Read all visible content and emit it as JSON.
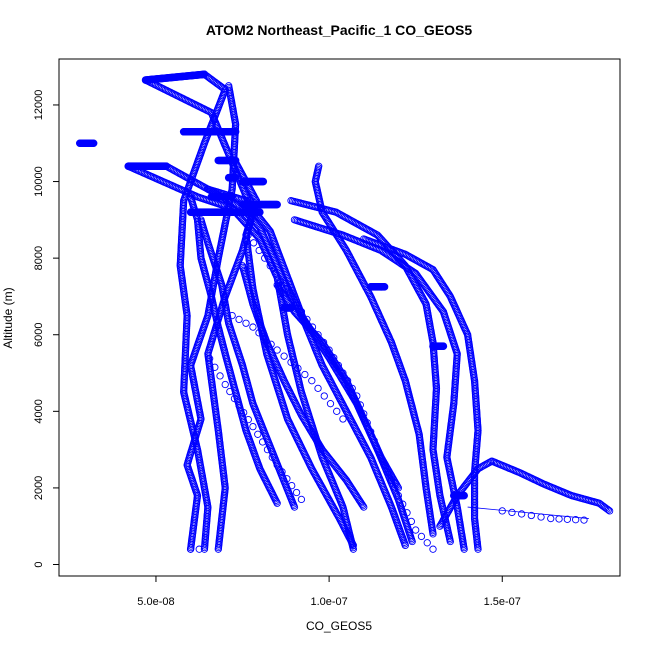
{
  "chart_data": {
    "type": "scatter",
    "title": "ATOM2 Northeast_Pacific_1 CO_GEOS5",
    "xlabel": "CO_GEOS5",
    "ylabel": "Altitude (m)",
    "xlim": [
      2.2e-08,
      1.84e-07
    ],
    "ylim": [
      -300,
      13200
    ],
    "x_ticks": [
      5e-08,
      1e-07,
      1.5e-07
    ],
    "x_tick_labels": [
      "5.0e-08",
      "1.0e-07",
      "1.5e-07"
    ],
    "y_ticks": [
      0,
      2000,
      4000,
      6000,
      8000,
      10000,
      12000
    ],
    "y_tick_labels": [
      "0",
      "2000",
      "4000",
      "6000",
      "8000",
      "10000",
      "12000"
    ],
    "grid": false,
    "marker_color": "#0000ff",
    "marker": "open-circle",
    "series": [
      {
        "values": [
          [
            6e-08,
            400
          ],
          [
            6.2e-08,
            1800
          ],
          [
            5.9e-08,
            2600
          ],
          [
            6.3e-08,
            3800
          ],
          [
            6e-08,
            5200
          ],
          [
            6.5e-08,
            6500
          ],
          [
            6.8e-08,
            8000
          ],
          [
            7.2e-08,
            9800
          ],
          [
            7.3e-08,
            11500
          ],
          [
            7.1e-08,
            12500
          ]
        ]
      },
      {
        "values": [
          [
            6.4e-08,
            400
          ],
          [
            6.5e-08,
            1500
          ],
          [
            6.2e-08,
            3000
          ],
          [
            5.8e-08,
            4500
          ],
          [
            5.9e-08,
            6500
          ],
          [
            5.7e-08,
            7800
          ],
          [
            5.8e-08,
            9500
          ],
          [
            6.4e-08,
            11000
          ],
          [
            7e-08,
            12400
          ],
          [
            6.4e-08,
            12800
          ]
        ]
      },
      {
        "values": [
          [
            6.8e-08,
            400
          ],
          [
            7e-08,
            2000
          ],
          [
            6.8e-08,
            3500
          ],
          [
            6.5e-08,
            5500
          ],
          [
            7e-08,
            7000
          ],
          [
            7.5e-08,
            8200
          ],
          [
            7.8e-08,
            9200
          ],
          [
            7.2e-08,
            10500
          ],
          [
            6.6e-08,
            11800
          ],
          [
            4.7e-08,
            12650
          ]
        ]
      },
      {
        "values": [
          [
            1.07e-07,
            400
          ],
          [
            1.04e-07,
            1500
          ],
          [
            9.8e-08,
            2800
          ],
          [
            9.2e-08,
            4500
          ],
          [
            8.8e-08,
            6000
          ],
          [
            8.5e-08,
            7500
          ],
          [
            8e-08,
            8500
          ],
          [
            7.2e-08,
            9300
          ],
          [
            6.2e-08,
            9600
          ],
          [
            4.2e-08,
            10400
          ]
        ]
      },
      {
        "values": [
          [
            1.07e-07,
            500
          ],
          [
            1.03e-07,
            1200
          ],
          [
            9.5e-08,
            2500
          ],
          [
            8.8e-08,
            3800
          ],
          [
            8.2e-08,
            5500
          ],
          [
            7.8e-08,
            7200
          ],
          [
            7.6e-08,
            8600
          ],
          [
            7.9e-08,
            9500
          ],
          [
            7.6e-08,
            10000
          ],
          [
            7.3e-08,
            10500
          ]
        ]
      },
      {
        "values": [
          [
            1.22e-07,
            500
          ],
          [
            1.18e-07,
            1500
          ],
          [
            1.12e-07,
            2800
          ],
          [
            1.05e-07,
            4000
          ],
          [
            9.8e-08,
            5200
          ],
          [
            9.3e-08,
            6300
          ],
          [
            8.8e-08,
            7500
          ],
          [
            8.3e-08,
            8700
          ],
          [
            7.6e-08,
            9500
          ],
          [
            6.5e-08,
            9800
          ]
        ]
      },
      {
        "values": [
          [
            1.24e-07,
            600
          ],
          [
            1.2e-07,
            1700
          ],
          [
            1.14e-07,
            3000
          ],
          [
            1.08e-07,
            4200
          ],
          [
            1e-07,
            5400
          ],
          [
            9.2e-08,
            6500
          ],
          [
            8.6e-08,
            7600
          ],
          [
            8e-08,
            8800
          ],
          [
            7.5e-08,
            9300
          ],
          [
            5.3e-08,
            10400
          ]
        ]
      },
      {
        "values": [
          [
            1.3e-07,
            800
          ],
          [
            1.28e-07,
            2000
          ],
          [
            1.26e-07,
            3400
          ],
          [
            1.22e-07,
            4800
          ],
          [
            1.18e-07,
            5800
          ],
          [
            1.12e-07,
            7000
          ],
          [
            1.05e-07,
            8200
          ],
          [
            9.8e-08,
            9200
          ],
          [
            9.6e-08,
            10000
          ],
          [
            9.7e-08,
            10400
          ]
        ]
      },
      {
        "values": [
          [
            1.35e-07,
            600
          ],
          [
            1.32e-07,
            1800
          ],
          [
            1.3e-07,
            3000
          ],
          [
            1.31e-07,
            4600
          ],
          [
            1.3e-07,
            5800
          ],
          [
            1.28e-07,
            6800
          ],
          [
            1.22e-07,
            7800
          ],
          [
            1.14e-07,
            8600
          ],
          [
            1.02e-07,
            9200
          ],
          [
            8.9e-08,
            9500
          ]
        ]
      },
      {
        "values": [
          [
            1.39e-07,
            400
          ],
          [
            1.37e-07,
            1500
          ],
          [
            1.34e-07,
            2800
          ],
          [
            1.36e-07,
            4200
          ],
          [
            1.37e-07,
            5500
          ],
          [
            1.33e-07,
            6600
          ],
          [
            1.25e-07,
            7600
          ],
          [
            1.15e-07,
            8200
          ],
          [
            1.04e-07,
            8600
          ],
          [
            9e-08,
            9000
          ]
        ]
      },
      {
        "values": [
          [
            1.43e-07,
            400
          ],
          [
            1.42e-07,
            1200
          ],
          [
            1.42e-07,
            2400
          ],
          [
            1.43e-07,
            3500
          ],
          [
            1.42e-07,
            4800
          ],
          [
            1.4e-07,
            6000
          ],
          [
            1.35e-07,
            7000
          ],
          [
            1.3e-07,
            7700
          ],
          [
            1.22e-07,
            8100
          ],
          [
            1.1e-07,
            8500
          ]
        ]
      },
      {
        "values": [
          [
            1.32e-07,
            1000
          ],
          [
            1.37e-07,
            1800
          ],
          [
            1.43e-07,
            2500
          ],
          [
            1.47e-07,
            2700
          ],
          [
            1.55e-07,
            2400
          ],
          [
            1.62e-07,
            2100
          ],
          [
            1.7e-07,
            1800
          ],
          [
            1.78e-07,
            1600
          ],
          [
            1.81e-07,
            1400
          ]
        ]
      },
      {
        "values": [
          [
            8.5e-08,
            1600
          ],
          [
            8e-08,
            2500
          ],
          [
            7.6e-08,
            3500
          ],
          [
            7.3e-08,
            4500
          ],
          [
            7e-08,
            5500
          ],
          [
            6.8e-08,
            6200
          ],
          [
            6.6e-08,
            7000
          ],
          [
            6.3e-08,
            8000
          ],
          [
            6.2e-08,
            9000
          ],
          [
            6e-08,
            9600
          ]
        ]
      },
      {
        "values": [
          [
            9e-08,
            1500
          ],
          [
            8.6e-08,
            2400
          ],
          [
            8.2e-08,
            3300
          ],
          [
            7.8e-08,
            4200
          ],
          [
            7.5e-08,
            5200
          ],
          [
            7.1e-08,
            6300
          ],
          [
            6.9e-08,
            7300
          ],
          [
            6.5e-08,
            8400
          ],
          [
            6.3e-08,
            9000
          ]
        ]
      },
      {
        "values": [
          [
            1.1e-07,
            1500
          ],
          [
            1.05e-07,
            2200
          ],
          [
            9.8e-08,
            3000
          ],
          [
            9.2e-08,
            3900
          ],
          [
            8.7e-08,
            4800
          ],
          [
            8.2e-08,
            5800
          ],
          [
            7.8e-08,
            6800
          ],
          [
            7.5e-08,
            7800
          ]
        ]
      },
      {
        "values": [
          [
            1.2e-07,
            2000
          ],
          [
            1.15e-07,
            2800
          ],
          [
            1.1e-07,
            3800
          ],
          [
            1.05e-07,
            4800
          ],
          [
            9.8e-08,
            5800
          ],
          [
            9e-08,
            6600
          ],
          [
            8.5e-08,
            7300
          ]
        ]
      }
    ],
    "segments": [
      {
        "values": [
          [
            2.8e-08,
            11000
          ],
          [
            3.2e-08,
            11000
          ]
        ]
      },
      {
        "values": [
          [
            4.7e-08,
            12650
          ],
          [
            6.4e-08,
            12800
          ]
        ]
      },
      {
        "values": [
          [
            5.8e-08,
            11300
          ],
          [
            7.3e-08,
            11300
          ]
        ]
      },
      {
        "values": [
          [
            4.2e-08,
            10400
          ],
          [
            5.3e-08,
            10400
          ]
        ]
      },
      {
        "values": [
          [
            7.1e-08,
            10100
          ],
          [
            7.3e-08,
            10100
          ]
        ]
      },
      {
        "values": [
          [
            7.5e-08,
            10000
          ],
          [
            8.1e-08,
            10000
          ]
        ]
      },
      {
        "values": [
          [
            6.8e-08,
            10550
          ],
          [
            7.3e-08,
            10550
          ]
        ]
      },
      {
        "values": [
          [
            6e-08,
            9200
          ],
          [
            8e-08,
            9200
          ]
        ]
      },
      {
        "values": [
          [
            7.5e-08,
            9400
          ],
          [
            8.5e-08,
            9400
          ]
        ]
      },
      {
        "values": [
          [
            6.6e-08,
            9600
          ],
          [
            7.2e-08,
            9600
          ]
        ]
      },
      {
        "values": [
          [
            8.7e-08,
            6700
          ],
          [
            8.9e-08,
            6700
          ]
        ]
      },
      {
        "values": [
          [
            1.12e-07,
            7250
          ],
          [
            1.16e-07,
            7250
          ]
        ]
      },
      {
        "values": [
          [
            1.3e-07,
            5700
          ],
          [
            1.33e-07,
            5700
          ]
        ]
      },
      {
        "values": [
          [
            1.36e-07,
            1800
          ],
          [
            1.39e-07,
            1800
          ]
        ]
      },
      {
        "values": [
          [
            1.4e-07,
            1500
          ],
          [
            1.75e-07,
            1200
          ]
        ]
      }
    ],
    "sparse": [
      {
        "values": [
          [
            6e-08,
            400
          ],
          [
            6.5e-08,
            400
          ]
        ]
      },
      {
        "values": [
          [
            9.2e-08,
            1700
          ],
          [
            8.5e-08,
            2600
          ],
          [
            7.8e-08,
            3600
          ],
          [
            7e-08,
            4700
          ],
          [
            6.4e-08,
            5600
          ]
        ]
      },
      {
        "values": [
          [
            1.3e-07,
            400
          ],
          [
            1.25e-07,
            900
          ],
          [
            1.2e-07,
            1800
          ],
          [
            1.14e-07,
            3000
          ],
          [
            1.08e-07,
            4400
          ],
          [
            1e-07,
            5600
          ],
          [
            9.2e-08,
            6600
          ],
          [
            8.3e-08,
            7800
          ],
          [
            7.5e-08,
            8800
          ]
        ]
      },
      {
        "values": [
          [
            1.04e-07,
            3800
          ],
          [
            9.5e-08,
            4800
          ],
          [
            8.5e-08,
            5600
          ],
          [
            7.8e-08,
            6200
          ],
          [
            7e-08,
            6600
          ]
        ]
      },
      {
        "values": [
          [
            1.5e-07,
            1400
          ],
          [
            1.64e-07,
            1200
          ],
          [
            1.76e-07,
            1150
          ]
        ]
      }
    ]
  }
}
